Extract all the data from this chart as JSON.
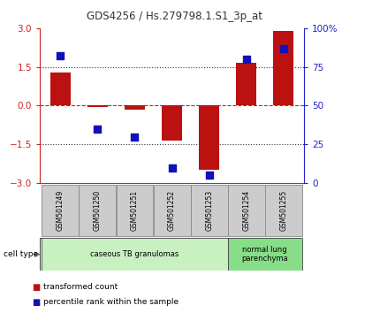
{
  "title": "GDS4256 / Hs.279798.1.S1_3p_at",
  "samples": [
    "GSM501249",
    "GSM501250",
    "GSM501251",
    "GSM501252",
    "GSM501253",
    "GSM501254",
    "GSM501255"
  ],
  "transformed_count": [
    1.3,
    -0.05,
    -0.15,
    -1.35,
    -2.5,
    1.65,
    2.9
  ],
  "percentile_rank": [
    82,
    35,
    30,
    10,
    5,
    80,
    87
  ],
  "ylim_left": [
    -3,
    3
  ],
  "ylim_right": [
    0,
    100
  ],
  "yticks_left": [
    -3,
    -1.5,
    0,
    1.5,
    3
  ],
  "yticks_right": [
    0,
    25,
    50,
    75,
    100
  ],
  "ytick_labels_right": [
    "0",
    "25",
    "50",
    "75",
    "100%"
  ],
  "bar_color": "#bb1111",
  "dot_color": "#1111bb",
  "bar_width": 0.55,
  "dot_size": 35,
  "cell_types": [
    {
      "label": "caseous TB granulomas",
      "samples": [
        0,
        1,
        2,
        3,
        4
      ],
      "color": "#c8f0c0"
    },
    {
      "label": "normal lung\nparenchyma",
      "samples": [
        5,
        6
      ],
      "color": "#88dd88"
    }
  ],
  "cell_type_label": "cell type",
  "legend_items": [
    {
      "color": "#bb1111",
      "label": "transformed count"
    },
    {
      "color": "#1111bb",
      "label": "percentile rank within the sample"
    }
  ],
  "tick_label_color_left": "#cc2222",
  "tick_label_color_right": "#2222cc",
  "zero_line_color": "#cc2222",
  "dotted_line_color": "#333333",
  "bg_color": "#ffffff",
  "sample_box_color": "#cccccc",
  "sample_box_edge": "#888888"
}
